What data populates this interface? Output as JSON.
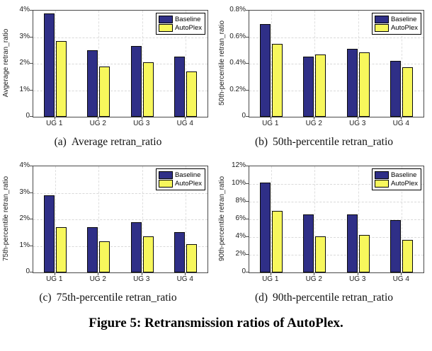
{
  "figure": {
    "caption": "Figure 5: Retransmission ratios of AutoPlex."
  },
  "colors": {
    "baseline": "#2f2f87",
    "autoplex": "#f7f75c",
    "bar_edge": "#0a0a0a",
    "grid": "#d9d9d9",
    "axis": "#4a4a4a"
  },
  "legend": {
    "entries": [
      "Baseline",
      "AutoPlex"
    ],
    "position": "top-right"
  },
  "chart_data": [
    {
      "id": "a",
      "type": "bar",
      "index_label": "(a)",
      "subcaption": "Average retran_ratio",
      "ylabel": "Avgerage retran_ratio",
      "xlabel": "",
      "categories": [
        "UG 1",
        "UG 2",
        "UG 3",
        "UG 4"
      ],
      "series": [
        {
          "name": "Baseline",
          "color": "#2f2f87",
          "values": [
            3.9,
            2.52,
            2.67,
            2.26
          ]
        },
        {
          "name": "AutoPlex",
          "color": "#f7f75c",
          "values": [
            2.85,
            1.9,
            2.05,
            1.72
          ]
        }
      ],
      "ylim": [
        0,
        4
      ],
      "yticks": [
        0,
        1,
        2,
        3,
        4
      ],
      "ytick_labels": [
        "0",
        "1%",
        "2%",
        "3%",
        "4%"
      ],
      "grid": true,
      "legend_position": "top-right"
    },
    {
      "id": "b",
      "type": "bar",
      "index_label": "(b)",
      "subcaption": "50th-percentile retran_ratio",
      "ylabel": "50th-percentile retran_ratio",
      "xlabel": "",
      "categories": [
        "UG 1",
        "UG 2",
        "UG 3",
        "UG 4"
      ],
      "series": [
        {
          "name": "Baseline",
          "color": "#2f2f87",
          "values": [
            0.7,
            0.455,
            0.51,
            0.42
          ]
        },
        {
          "name": "AutoPlex",
          "color": "#f7f75c",
          "values": [
            0.55,
            0.47,
            0.485,
            0.375
          ]
        }
      ],
      "ylim": [
        0,
        0.8
      ],
      "yticks": [
        0,
        0.2,
        0.4,
        0.6,
        0.8
      ],
      "ytick_labels": [
        "0",
        "0.2%",
        "0.4%",
        "0.6%",
        "0.8%"
      ],
      "grid": true,
      "legend_position": "top-right"
    },
    {
      "id": "c",
      "type": "bar",
      "index_label": "(c)",
      "subcaption": "75th-percentile retran_ratio",
      "ylabel": "75th-percentile retran_ratio",
      "xlabel": "",
      "categories": [
        "UG 1",
        "UG 2",
        "UG 3",
        "UG 4"
      ],
      "series": [
        {
          "name": "Baseline",
          "color": "#2f2f87",
          "values": [
            2.9,
            1.7,
            1.9,
            1.52
          ]
        },
        {
          "name": "AutoPlex",
          "color": "#f7f75c",
          "values": [
            1.7,
            1.18,
            1.37,
            1.08
          ]
        }
      ],
      "ylim": [
        0,
        4
      ],
      "yticks": [
        0,
        1,
        2,
        3,
        4
      ],
      "ytick_labels": [
        "0",
        "1%",
        "2%",
        "3%",
        "4%"
      ],
      "grid": true,
      "legend_position": "top-right"
    },
    {
      "id": "d",
      "type": "bar",
      "index_label": "(d)",
      "subcaption": "90th-percentile retran_ratio",
      "ylabel": "90th-percentile retran_ratio",
      "xlabel": "",
      "categories": [
        "UG 1",
        "UG 2",
        "UG 3",
        "UG 4"
      ],
      "series": [
        {
          "name": "Baseline",
          "color": "#2f2f87",
          "values": [
            10.2,
            6.6,
            6.55,
            5.9
          ]
        },
        {
          "name": "AutoPlex",
          "color": "#f7f75c",
          "values": [
            6.95,
            4.05,
            4.25,
            3.65
          ]
        }
      ],
      "ylim": [
        0,
        12
      ],
      "yticks": [
        0,
        2,
        4,
        6,
        8,
        10,
        12
      ],
      "ytick_labels": [
        "0",
        "2%",
        "4%",
        "6%",
        "8%",
        "10%",
        "12%"
      ],
      "grid": true,
      "legend_position": "top-right"
    }
  ]
}
